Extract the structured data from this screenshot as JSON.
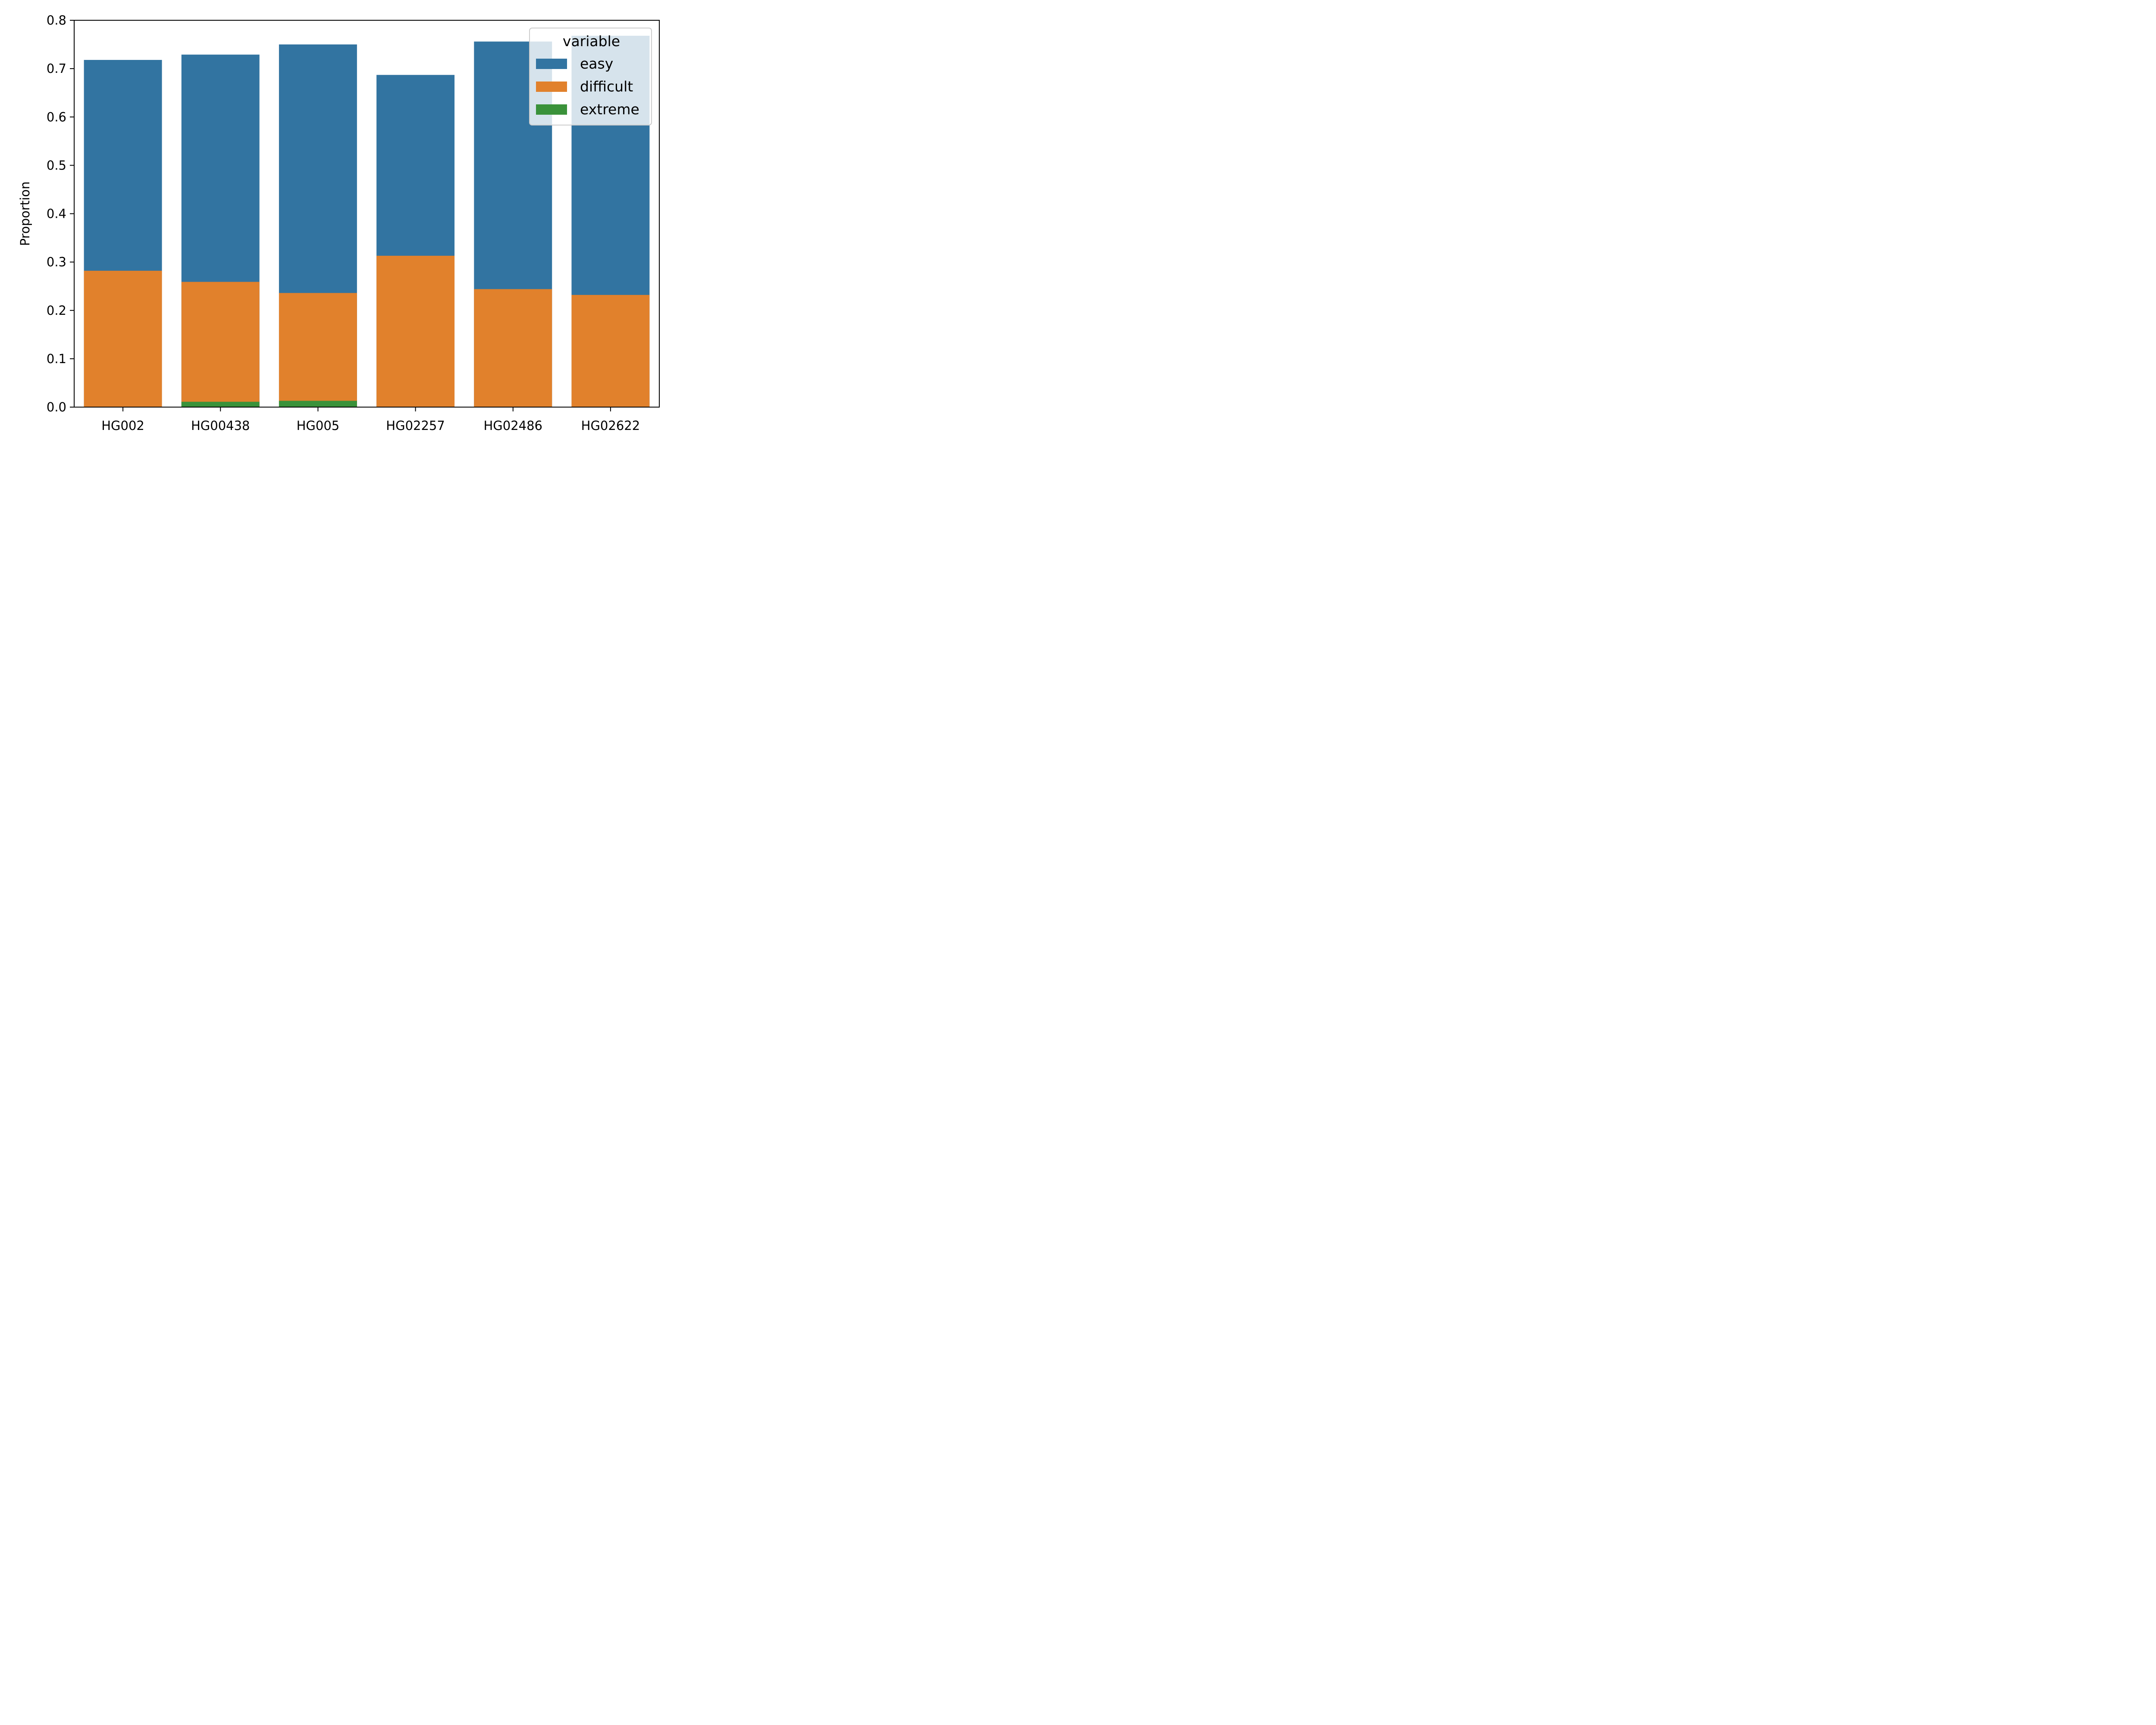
{
  "chart_data": {
    "type": "bar",
    "categories": [
      "HG002",
      "HG00438",
      "HG005",
      "HG02257",
      "HG02486",
      "HG02622"
    ],
    "series": [
      {
        "name": "easy",
        "color": "#3274a1",
        "values": [
          0.718,
          0.729,
          0.75,
          0.687,
          0.756,
          0.768
        ]
      },
      {
        "name": "difficult",
        "color": "#e1812c",
        "values": [
          0.282,
          0.259,
          0.236,
          0.313,
          0.244,
          0.232
        ]
      },
      {
        "name": "extreme",
        "color": "#3a923a",
        "values": [
          0.0,
          0.011,
          0.013,
          0.0,
          0.0,
          0.0
        ]
      }
    ],
    "overlapping_bars": true,
    "ylabel": "Proportion",
    "xlabel": "",
    "ylim": [
      0,
      0.8
    ],
    "yticks": [
      "0.0",
      "0.1",
      "0.2",
      "0.3",
      "0.4",
      "0.5",
      "0.6",
      "0.7",
      "0.8"
    ],
    "legend": {
      "title": "variable",
      "placement": "upper-right"
    },
    "grid": false
  }
}
